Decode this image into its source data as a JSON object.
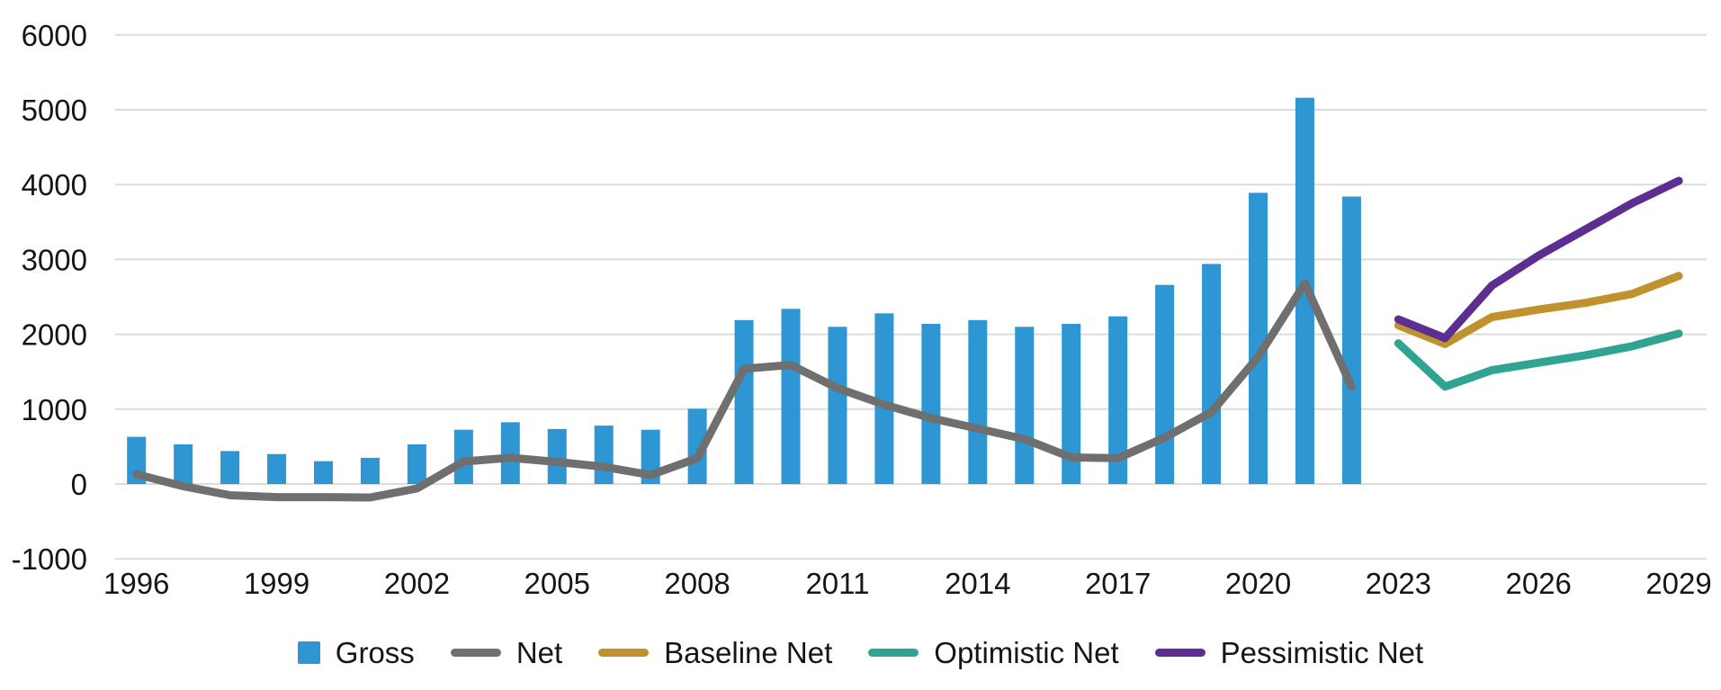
{
  "chart_data": {
    "type": "combo",
    "title": "",
    "xlabel": "",
    "ylabel": "",
    "grid": true,
    "legend_position": "bottom",
    "y_axis": {
      "min": -1000,
      "max": 6000,
      "step": 1000,
      "tick_labels": [
        "-1000",
        "0",
        "1000",
        "2000",
        "3000",
        "4000",
        "5000",
        "6000"
      ]
    },
    "x_axis": {
      "start_year": 1996,
      "end_year": 2029,
      "tick_step": 3,
      "tick_labels": [
        "1996",
        "1999",
        "2002",
        "2005",
        "2008",
        "2011",
        "2014",
        "2017",
        "2020",
        "2023",
        "2026",
        "2029"
      ]
    },
    "series": [
      {
        "name": "Gross",
        "type": "bar",
        "color": "#2E96D3",
        "start_year": 1996,
        "values": [
          630,
          530,
          440,
          400,
          305,
          350,
          530,
          725,
          825,
          735,
          780,
          725,
          1005,
          2190,
          2340,
          2100,
          2280,
          2140,
          2190,
          2100,
          2140,
          2240,
          2660,
          2940,
          3890,
          5160,
          3840
        ]
      },
      {
        "name": "Net",
        "type": "line",
        "color": "#6F6F6F",
        "start_year": 1996,
        "values": [
          130,
          -30,
          -150,
          -175,
          -175,
          -180,
          -60,
          300,
          350,
          295,
          230,
          120,
          345,
          1540,
          1590,
          1280,
          1060,
          880,
          740,
          600,
          355,
          345,
          620,
          960,
          1700,
          2680,
          1300
        ]
      },
      {
        "name": "Baseline Net",
        "type": "line",
        "color": "#C0922E",
        "start_year": 2023,
        "values": [
          2120,
          1870,
          2230,
          2330,
          2420,
          2540,
          2780
        ]
      },
      {
        "name": "Optimistic Net",
        "type": "line",
        "color": "#30A493",
        "start_year": 2023,
        "values": [
          1880,
          1300,
          1520,
          1620,
          1720,
          1840,
          2010
        ]
      },
      {
        "name": "Pessimistic Net",
        "type": "line",
        "color": "#5C2E91",
        "start_year": 2023,
        "values": [
          2200,
          1950,
          2650,
          3050,
          3400,
          3750,
          4050
        ]
      }
    ]
  },
  "legend": {
    "items": [
      {
        "label": "Gross",
        "color": "#2E96D3",
        "marker": "square"
      },
      {
        "label": "Net",
        "color": "#6F6F6F",
        "marker": "line"
      },
      {
        "label": "Baseline Net",
        "color": "#C0922E",
        "marker": "line"
      },
      {
        "label": "Optimistic Net",
        "color": "#30A493",
        "marker": "line"
      },
      {
        "label": "Pessimistic Net",
        "color": "#5C2E91",
        "marker": "line"
      }
    ]
  },
  "colors": {
    "background": "#FFFFFF",
    "gridline": "#DBDBDB",
    "tick_text": "#161616"
  }
}
